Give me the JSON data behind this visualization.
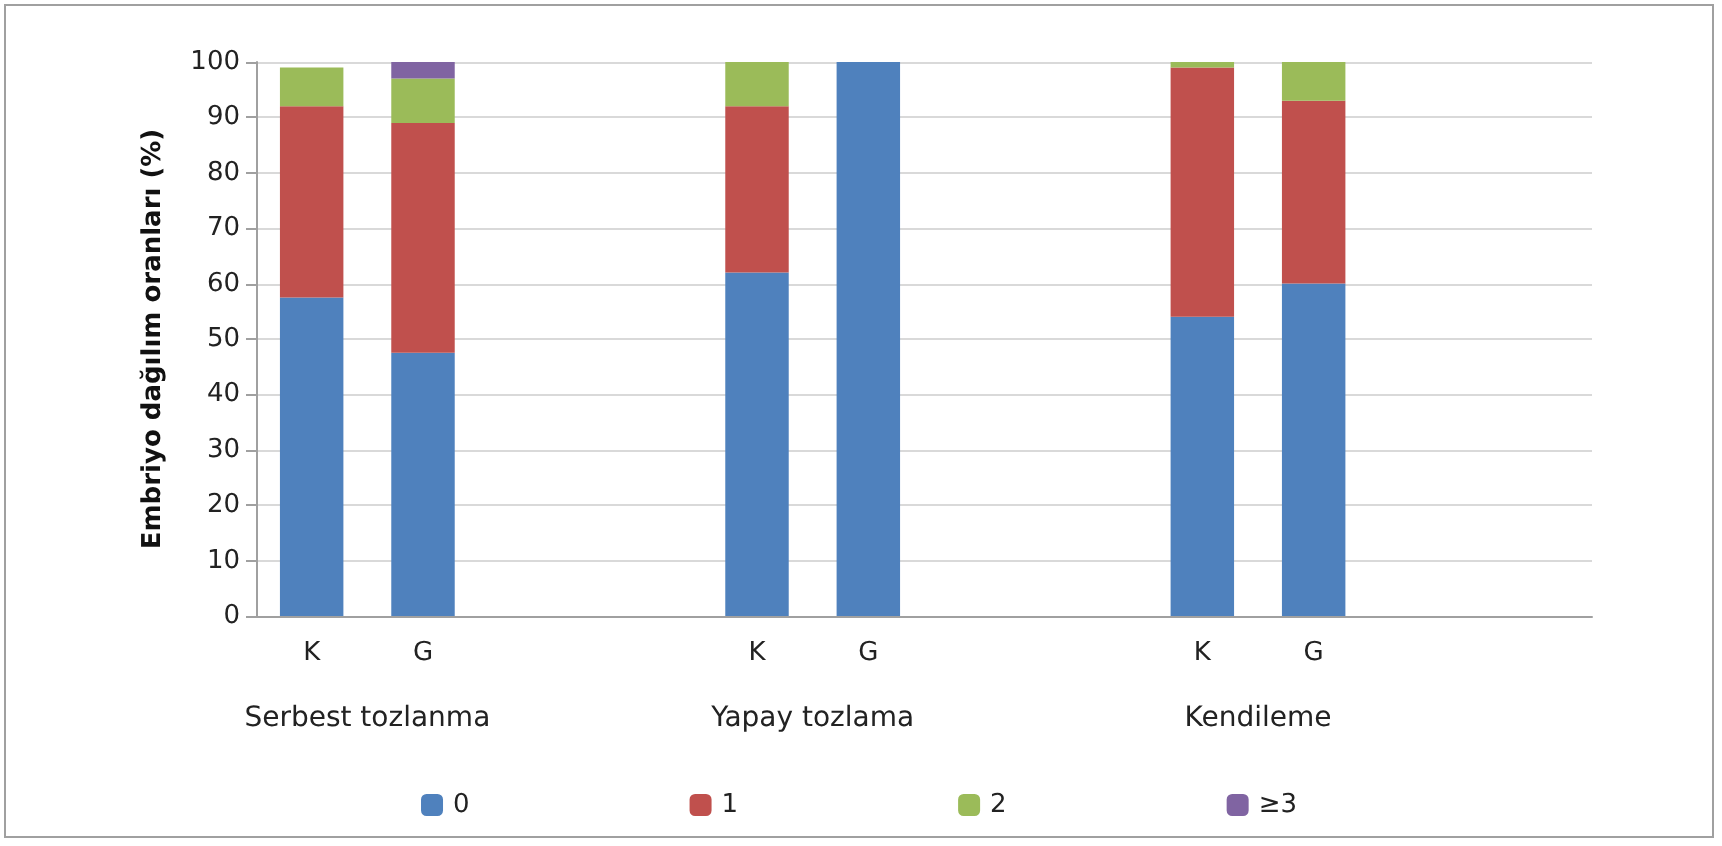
{
  "chart_data": {
    "type": "bar",
    "stacked": true,
    "ylabel": "Embriyo dağılım oranları (%)",
    "categories": [
      "K",
      "G",
      null,
      null,
      "K",
      "G",
      null,
      null,
      "K",
      "G",
      null,
      null
    ],
    "series": [
      {
        "name": "0",
        "color": "#4f81bd",
        "values": [
          57.5,
          47.5,
          null,
          null,
          62,
          100,
          null,
          null,
          54,
          60,
          null,
          null
        ]
      },
      {
        "name": "1",
        "color": "#c0504d",
        "values": [
          34.5,
          41.5,
          null,
          null,
          30,
          0,
          null,
          null,
          45,
          33,
          null,
          null
        ]
      },
      {
        "name": "2",
        "color": "#9bbb59",
        "values": [
          7,
          8,
          null,
          null,
          8,
          0,
          null,
          null,
          1,
          7,
          null,
          null
        ]
      },
      {
        "name": "≥3",
        "color": "#8064a2",
        "values": [
          0,
          3,
          null,
          null,
          0,
          0,
          null,
          null,
          0,
          0,
          null,
          null
        ]
      }
    ],
    "annotations": [
      "Serbest tozlanma",
      "Yapay tozlama",
      "Kendileme"
    ],
    "ylim": [
      0,
      100
    ],
    "yticks": [
      0,
      10,
      20,
      30,
      40,
      50,
      60,
      70,
      80,
      90,
      100
    ],
    "grid": "y",
    "legend": "bottom"
  }
}
